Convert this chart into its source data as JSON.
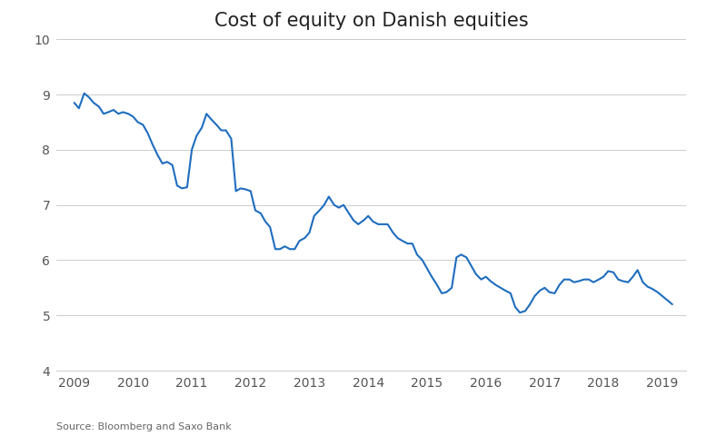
{
  "title": "Cost of equity on Danish equities",
  "source": "Source: Bloomberg and Saxo Bank",
  "line_color": "#1f6dbf",
  "line_width": 1.5,
  "background_color": "#ffffff",
  "grid_color": "#cccccc",
  "ylim": [
    4,
    10
  ],
  "yticks": [
    4,
    5,
    6,
    7,
    8,
    9,
    10
  ],
  "xlim_start": 2008.7,
  "xlim_end": 2019.4,
  "xtick_labels": [
    "2009",
    "2010",
    "2011",
    "2012",
    "2013",
    "2014",
    "2015",
    "2016",
    "2017",
    "2018",
    "2019"
  ],
  "xtick_positions": [
    2009,
    2010,
    2011,
    2012,
    2013,
    2014,
    2015,
    2016,
    2017,
    2018,
    2019
  ],
  "data": [
    [
      2009.0,
      8.85
    ],
    [
      2009.08,
      8.75
    ],
    [
      2009.17,
      9.02
    ],
    [
      2009.25,
      8.95
    ],
    [
      2009.33,
      8.85
    ],
    [
      2009.42,
      8.78
    ],
    [
      2009.5,
      8.65
    ],
    [
      2009.58,
      8.68
    ],
    [
      2009.67,
      8.72
    ],
    [
      2009.75,
      8.65
    ],
    [
      2009.83,
      8.68
    ],
    [
      2009.92,
      8.65
    ],
    [
      2010.0,
      8.6
    ],
    [
      2010.08,
      8.5
    ],
    [
      2010.17,
      8.45
    ],
    [
      2010.25,
      8.3
    ],
    [
      2010.33,
      8.1
    ],
    [
      2010.42,
      7.9
    ],
    [
      2010.5,
      7.75
    ],
    [
      2010.58,
      7.78
    ],
    [
      2010.67,
      7.72
    ],
    [
      2010.75,
      7.35
    ],
    [
      2010.83,
      7.3
    ],
    [
      2010.92,
      7.32
    ],
    [
      2011.0,
      8.0
    ],
    [
      2011.08,
      8.25
    ],
    [
      2011.17,
      8.4
    ],
    [
      2011.25,
      8.65
    ],
    [
      2011.33,
      8.55
    ],
    [
      2011.42,
      8.45
    ],
    [
      2011.5,
      8.35
    ],
    [
      2011.58,
      8.35
    ],
    [
      2011.67,
      8.2
    ],
    [
      2011.75,
      7.25
    ],
    [
      2011.83,
      7.3
    ],
    [
      2011.92,
      7.28
    ],
    [
      2012.0,
      7.25
    ],
    [
      2012.08,
      6.9
    ],
    [
      2012.17,
      6.85
    ],
    [
      2012.25,
      6.7
    ],
    [
      2012.33,
      6.6
    ],
    [
      2012.42,
      6.2
    ],
    [
      2012.5,
      6.2
    ],
    [
      2012.58,
      6.25
    ],
    [
      2012.67,
      6.2
    ],
    [
      2012.75,
      6.2
    ],
    [
      2012.83,
      6.35
    ],
    [
      2012.92,
      6.4
    ],
    [
      2013.0,
      6.5
    ],
    [
      2013.08,
      6.8
    ],
    [
      2013.17,
      6.9
    ],
    [
      2013.25,
      7.0
    ],
    [
      2013.33,
      7.15
    ],
    [
      2013.42,
      7.0
    ],
    [
      2013.5,
      6.95
    ],
    [
      2013.58,
      7.0
    ],
    [
      2013.67,
      6.85
    ],
    [
      2013.75,
      6.72
    ],
    [
      2013.83,
      6.65
    ],
    [
      2013.92,
      6.72
    ],
    [
      2014.0,
      6.8
    ],
    [
      2014.08,
      6.7
    ],
    [
      2014.17,
      6.65
    ],
    [
      2014.25,
      6.65
    ],
    [
      2014.33,
      6.65
    ],
    [
      2014.42,
      6.5
    ],
    [
      2014.5,
      6.4
    ],
    [
      2014.58,
      6.35
    ],
    [
      2014.67,
      6.3
    ],
    [
      2014.75,
      6.3
    ],
    [
      2014.83,
      6.1
    ],
    [
      2014.92,
      6.0
    ],
    [
      2015.0,
      5.85
    ],
    [
      2015.08,
      5.7
    ],
    [
      2015.17,
      5.55
    ],
    [
      2015.25,
      5.4
    ],
    [
      2015.33,
      5.42
    ],
    [
      2015.42,
      5.5
    ],
    [
      2015.5,
      6.05
    ],
    [
      2015.58,
      6.1
    ],
    [
      2015.67,
      6.05
    ],
    [
      2015.75,
      5.9
    ],
    [
      2015.83,
      5.75
    ],
    [
      2015.92,
      5.65
    ],
    [
      2016.0,
      5.7
    ],
    [
      2016.08,
      5.62
    ],
    [
      2016.17,
      5.55
    ],
    [
      2016.25,
      5.5
    ],
    [
      2016.33,
      5.45
    ],
    [
      2016.42,
      5.4
    ],
    [
      2016.5,
      5.15
    ],
    [
      2016.58,
      5.05
    ],
    [
      2016.67,
      5.08
    ],
    [
      2016.75,
      5.2
    ],
    [
      2016.83,
      5.35
    ],
    [
      2016.92,
      5.45
    ],
    [
      2017.0,
      5.5
    ],
    [
      2017.08,
      5.42
    ],
    [
      2017.17,
      5.4
    ],
    [
      2017.25,
      5.55
    ],
    [
      2017.33,
      5.65
    ],
    [
      2017.42,
      5.65
    ],
    [
      2017.5,
      5.6
    ],
    [
      2017.58,
      5.62
    ],
    [
      2017.67,
      5.65
    ],
    [
      2017.75,
      5.65
    ],
    [
      2017.83,
      5.6
    ],
    [
      2017.92,
      5.65
    ],
    [
      2018.0,
      5.7
    ],
    [
      2018.08,
      5.8
    ],
    [
      2018.17,
      5.78
    ],
    [
      2018.25,
      5.65
    ],
    [
      2018.33,
      5.62
    ],
    [
      2018.42,
      5.6
    ],
    [
      2018.5,
      5.7
    ],
    [
      2018.58,
      5.82
    ],
    [
      2018.67,
      5.6
    ],
    [
      2018.75,
      5.52
    ],
    [
      2018.83,
      5.48
    ],
    [
      2018.92,
      5.42
    ],
    [
      2019.0,
      5.35
    ],
    [
      2019.08,
      5.28
    ],
    [
      2019.17,
      5.2
    ]
  ]
}
